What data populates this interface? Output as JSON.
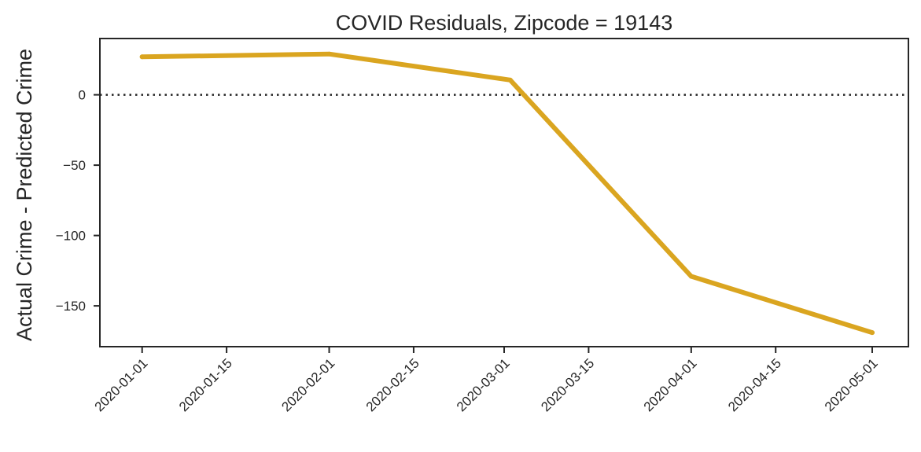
{
  "chart_data": {
    "type": "line",
    "title": "COVID Residuals, Zipcode = 19143",
    "xlabel": "",
    "ylabel": "Actual Crime - Predicted Crime",
    "x": [
      "2020-01-01",
      "2020-02-01",
      "2020-03-02",
      "2020-04-01",
      "2020-05-01"
    ],
    "series": [
      {
        "values": [
          27,
          29,
          10.5,
          -129,
          -169
        ]
      }
    ],
    "x_ticks": [
      "2020-01-01",
      "2020-01-15",
      "2020-02-01",
      "2020-02-15",
      "2020-03-01",
      "2020-03-15",
      "2020-04-01",
      "2020-04-15",
      "2020-05-01"
    ],
    "x_range": [
      "2019-12-25",
      "2020-05-07"
    ],
    "y_ticks": [
      0,
      -50,
      -100,
      -150
    ],
    "y_tick_labels": [
      "0",
      "−50",
      "−100",
      "−150"
    ],
    "ylim": [
      -179,
      40
    ],
    "reference_line": {
      "y": 0,
      "style": "dotted",
      "color": "#262626"
    },
    "line_color": "#DAA520",
    "grid": false
  }
}
